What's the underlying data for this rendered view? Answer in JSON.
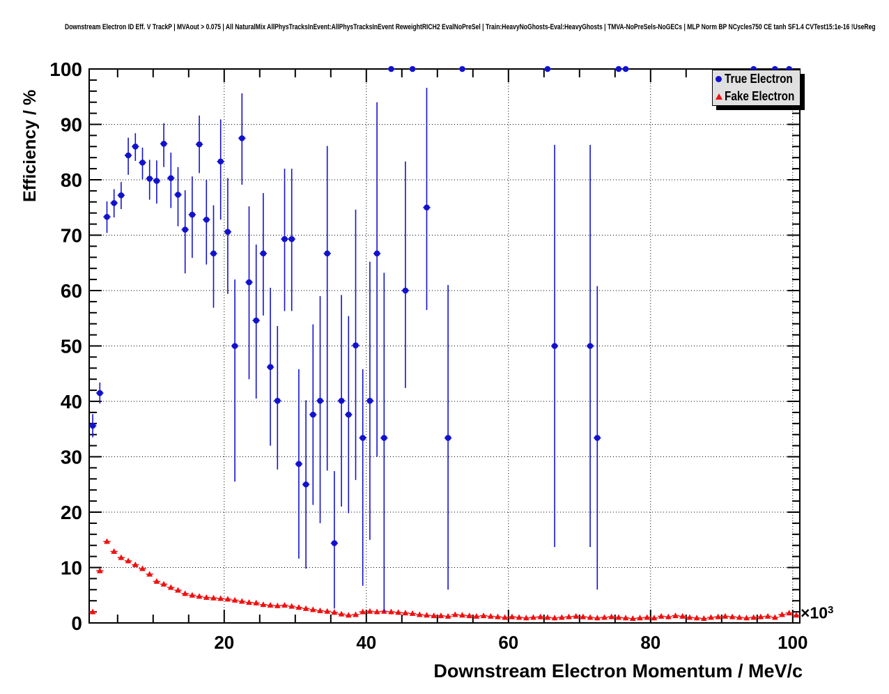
{
  "chart_data": {
    "type": "scatter",
    "title": "Downstream Electron ID Eff. V TrackP | MVAout > 0.075 | All NaturalMix AllPhysTracksInEvent:AllPhysTracksInEvent ReweightRICH2 EvalNoPreSel | Train:HeavyNoGhosts-Eval:HeavyGhosts | TMVA-NoPreSels-NoGECs | MLP Norm BP NCycles750 CE tanh SF1.4 CVTest15:1e-16 !UseReg",
    "xlabel": "Downstream Electron Momentum / MeV/c",
    "ylabel": "Efficiency / %",
    "x_power_label": {
      "base": "×10",
      "exp": "3"
    },
    "xlim": [
      1,
      101
    ],
    "ylim": [
      0,
      100
    ],
    "x_ticks": [
      20,
      40,
      60,
      80,
      100
    ],
    "y_ticks": [
      0,
      10,
      20,
      30,
      40,
      50,
      60,
      70,
      80,
      90,
      100
    ],
    "x_minor_step": 5,
    "y_minor_step": 2,
    "grid": true,
    "legend_position": "top-right",
    "frame_color": "#000000",
    "background_color": "#ffffff",
    "series": [
      {
        "name": "True Electron",
        "marker": "circle",
        "color": "#1212cd",
        "points_format": [
          "x_e3MeV",
          "y_pct",
          "err_low_pct",
          "err_high_pct"
        ],
        "points": [
          [
            1.5,
            35.6,
            33.5,
            37.7
          ],
          [
            2.5,
            41.5,
            39.6,
            43.4
          ],
          [
            3.5,
            73.3,
            70.4,
            76.1
          ],
          [
            4.5,
            75.8,
            73.2,
            78.3
          ],
          [
            5.5,
            77.2,
            74.7,
            79.6
          ],
          [
            6.5,
            84.4,
            80.9,
            87.6
          ],
          [
            7.5,
            86.0,
            83.4,
            88.4
          ],
          [
            8.5,
            83.1,
            80.1,
            85.8
          ],
          [
            9.5,
            80.2,
            76.4,
            83.6
          ],
          [
            10.5,
            79.8,
            75.7,
            83.5
          ],
          [
            11.5,
            86.5,
            82.3,
            90.2
          ],
          [
            12.5,
            80.3,
            74.9,
            84.9
          ],
          [
            13.5,
            77.3,
            71.6,
            82.3
          ],
          [
            14.5,
            71.0,
            63.1,
            78.1
          ],
          [
            15.5,
            73.7,
            65.9,
            80.6
          ],
          [
            16.5,
            86.4,
            81.2,
            91.6
          ],
          [
            17.5,
            72.8,
            64.7,
            80.0
          ],
          [
            18.5,
            66.7,
            56.9,
            75.4
          ],
          [
            19.5,
            83.3,
            72.8,
            90.9
          ],
          [
            20.5,
            70.6,
            59.4,
            80.3
          ],
          [
            21.5,
            50.0,
            25.5,
            62.0
          ],
          [
            22.5,
            87.5,
            79.1,
            95.6
          ],
          [
            23.5,
            61.5,
            44.0,
            75.2
          ],
          [
            24.5,
            54.6,
            40.5,
            68.3
          ],
          [
            25.5,
            66.7,
            55.5,
            77.6
          ],
          [
            26.5,
            46.2,
            32.0,
            60.5
          ],
          [
            27.5,
            40.1,
            27.7,
            53.6
          ],
          [
            28.5,
            69.3,
            56.3,
            82.0
          ],
          [
            29.5,
            69.3,
            56.3,
            82.0
          ],
          [
            30.5,
            28.7,
            11.6,
            45.8
          ],
          [
            31.5,
            25.0,
            9.8,
            40.2
          ],
          [
            32.5,
            37.6,
            21.3,
            53.9
          ],
          [
            33.5,
            40.1,
            18.0,
            59.0
          ],
          [
            34.5,
            66.7,
            27.5,
            86.1
          ],
          [
            35.5,
            14.4,
            2.6,
            27.4
          ],
          [
            36.5,
            40.1,
            21.0,
            59.2
          ],
          [
            37.5,
            37.6,
            19.8,
            55.4
          ],
          [
            38.5,
            50.1,
            25.8,
            74.6
          ],
          [
            39.5,
            33.4,
            6.7,
            45.8
          ],
          [
            40.5,
            40.1,
            15.0,
            65.2
          ],
          [
            41.5,
            66.7,
            30.0,
            94.0
          ],
          [
            42.5,
            33.4,
            2.0,
            63.2
          ],
          [
            43.5,
            100.0,
            100.0,
            100.0
          ],
          [
            45.5,
            60.0,
            42.4,
            83.3
          ],
          [
            46.5,
            100.0,
            100.0,
            100.0
          ],
          [
            48.5,
            75.0,
            56.5,
            96.6
          ],
          [
            51.5,
            33.4,
            6.0,
            61.0
          ],
          [
            53.5,
            100.0,
            100.0,
            100.0
          ],
          [
            65.5,
            100.0,
            100.0,
            100.0
          ],
          [
            66.5,
            50.0,
            13.7,
            86.3
          ],
          [
            71.5,
            50.0,
            13.7,
            86.3
          ],
          [
            72.5,
            33.4,
            6.0,
            60.8
          ],
          [
            75.5,
            100.0,
            100.0,
            100.0
          ],
          [
            76.5,
            100.0,
            100.0,
            100.0
          ],
          [
            94.5,
            100.0,
            100.0,
            100.0
          ],
          [
            97.5,
            100.0,
            100.0,
            100.0
          ],
          [
            99.5,
            100.0,
            100.0,
            100.0
          ]
        ]
      },
      {
        "name": "Fake Electron",
        "marker": "triangle",
        "color": "#ee1111",
        "x_start": 1.5,
        "x_step": 1,
        "values": [
          2.0,
          9.4,
          14.7,
          12.9,
          11.8,
          11.2,
          10.5,
          9.8,
          8.8,
          7.5,
          7.0,
          6.4,
          5.9,
          5.3,
          5.0,
          4.8,
          4.6,
          4.5,
          4.4,
          4.3,
          4.1,
          3.9,
          3.7,
          3.6,
          3.3,
          3.2,
          3.1,
          3.2,
          3.0,
          2.8,
          2.6,
          2.4,
          2.2,
          2.1,
          1.9,
          1.6,
          1.4,
          1.5,
          2.0,
          2.1,
          2.0,
          2.1,
          2.0,
          1.9,
          1.8,
          1.7,
          1.5,
          1.4,
          1.3,
          1.3,
          1.2,
          1.5,
          1.4,
          1.3,
          1.2,
          1.3,
          1.2,
          1.1,
          1.0,
          1.1,
          1.0,
          0.9,
          1.0,
          1.1,
          1.0,
          0.9,
          1.0,
          1.1,
          1.2,
          1.1,
          1.0,
          0.9,
          1.0,
          1.1,
          1.0,
          0.9,
          0.8,
          0.9,
          1.0,
          0.9,
          1.2,
          1.1,
          1.3,
          1.2,
          1.0,
          0.9,
          0.8,
          1.0,
          1.1,
          1.2,
          1.1,
          1.0,
          0.9,
          1.0,
          1.1,
          1.2,
          1.0,
          1.5,
          1.8,
          1.4
        ]
      }
    ]
  }
}
